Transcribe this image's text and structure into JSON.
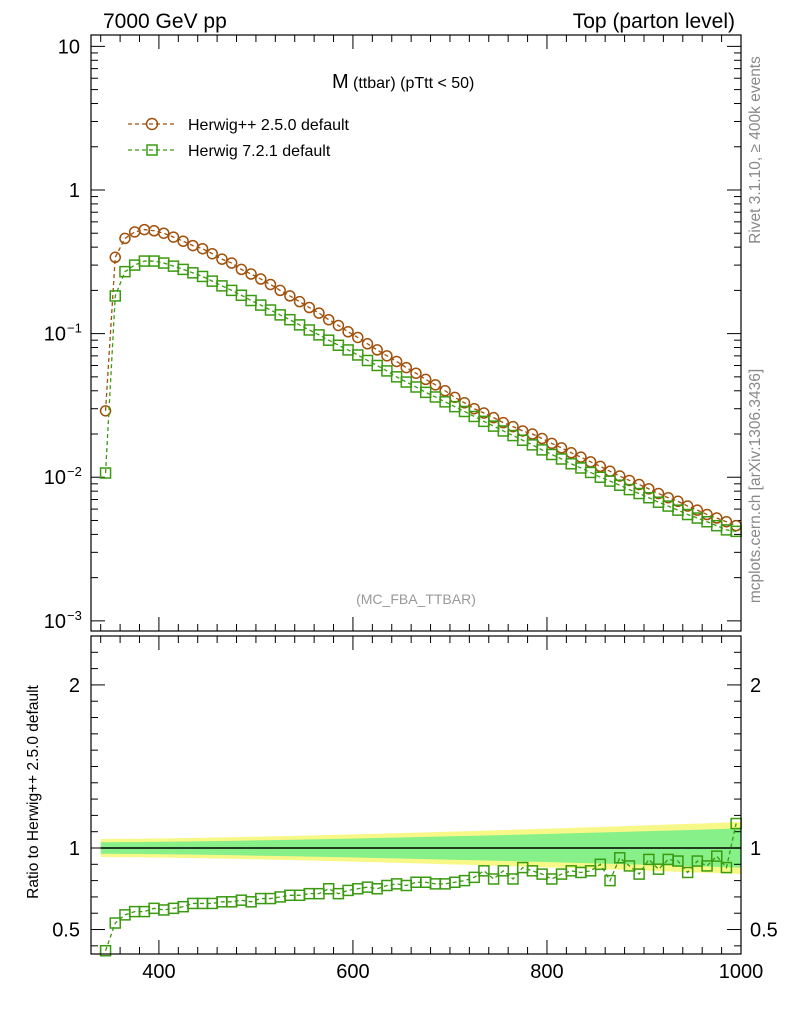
{
  "header": {
    "left": "7000 GeV pp",
    "right": "Top (parton level)"
  },
  "side_labels": {
    "rivet": "Rivet 3.1.10, ≥ 400k events",
    "mcplots": "mcplots.cern.ch [arXiv:1306.3436]"
  },
  "colors": {
    "herwigpp": "#a0500a",
    "herwig7": "#3a9a10",
    "band_inner": "#88f088",
    "band_outer": "#f8f888"
  },
  "chart_data": [
    {
      "type": "line",
      "panel": "main",
      "title": "M",
      "title_suffix": "(ttbar)  (pTtt < 50)",
      "watermark": "(MC_FBA_TTBAR)",
      "xlabel": "",
      "ylabel": "",
      "yscale": "log",
      "xlim": [
        330,
        1000
      ],
      "ylim": [
        0.00085,
        12
      ],
      "yticks": [
        {
          "value": 10,
          "label": "10"
        },
        {
          "value": 1,
          "label": "1"
        },
        {
          "value": 0.1,
          "label": "10",
          "exp": "−1"
        },
        {
          "value": 0.01,
          "label": "10",
          "exp": "−2"
        },
        {
          "value": 0.001,
          "label": "10",
          "exp": "−3"
        }
      ],
      "legend_position": "top-left",
      "x": [
        345,
        355,
        365,
        375,
        385,
        395,
        405,
        415,
        425,
        435,
        445,
        455,
        465,
        475,
        485,
        495,
        505,
        515,
        525,
        535,
        545,
        555,
        565,
        575,
        585,
        595,
        605,
        615,
        625,
        635,
        645,
        655,
        665,
        675,
        685,
        695,
        705,
        715,
        725,
        735,
        745,
        755,
        765,
        775,
        785,
        795,
        805,
        815,
        825,
        835,
        845,
        855,
        865,
        875,
        885,
        895,
        905,
        915,
        925,
        935,
        945,
        955,
        965,
        975,
        985,
        995
      ],
      "series": [
        {
          "name": "Herwig++ 2.5.0 default",
          "marker": "circle",
          "values": [
            0.029,
            0.34,
            0.46,
            0.51,
            0.53,
            0.52,
            0.5,
            0.47,
            0.44,
            0.41,
            0.39,
            0.36,
            0.33,
            0.31,
            0.28,
            0.26,
            0.24,
            0.22,
            0.2,
            0.183,
            0.167,
            0.152,
            0.139,
            0.125,
            0.114,
            0.103,
            0.094,
            0.085,
            0.077,
            0.07,
            0.064,
            0.058,
            0.053,
            0.048,
            0.044,
            0.04,
            0.036,
            0.033,
            0.03,
            0.028,
            0.026,
            0.024,
            0.0225,
            0.021,
            0.02,
            0.0186,
            0.0172,
            0.016,
            0.0148,
            0.0138,
            0.0128,
            0.0119,
            0.011,
            0.0102,
            0.0095,
            0.0089,
            0.0083,
            0.0077,
            0.0072,
            0.0068,
            0.0063,
            0.0059,
            0.0055,
            0.0052,
            0.0049,
            0.0046
          ]
        },
        {
          "name": "Herwig 7.2.1 default",
          "marker": "square",
          "values": [
            0.0107,
            0.183,
            0.27,
            0.3,
            0.32,
            0.32,
            0.31,
            0.295,
            0.28,
            0.265,
            0.25,
            0.232,
            0.215,
            0.2,
            0.185,
            0.17,
            0.158,
            0.146,
            0.135,
            0.125,
            0.115,
            0.106,
            0.098,
            0.09,
            0.083,
            0.077,
            0.071,
            0.065,
            0.06,
            0.055,
            0.05,
            0.046,
            0.0425,
            0.039,
            0.0362,
            0.0335,
            0.031,
            0.0287,
            0.0265,
            0.0245,
            0.0227,
            0.021,
            0.0195,
            0.0181,
            0.0168,
            0.0155,
            0.0144,
            0.0134,
            0.0124,
            0.0116,
            0.0108,
            0.01,
            0.0094,
            0.0088,
            0.0082,
            0.0077,
            0.0072,
            0.0067,
            0.0063,
            0.0059,
            0.0055,
            0.0052,
            0.0049,
            0.0046,
            0.0043,
            0.0042
          ]
        }
      ]
    },
    {
      "type": "line",
      "panel": "ratio",
      "title": "",
      "xlabel": "",
      "ylabel": "Ratio to Herwig++ 2.5.0 default",
      "xlim": [
        330,
        1000
      ],
      "ylim": [
        0.35,
        2.3
      ],
      "yticks": [
        {
          "value": 2,
          "label": "2"
        },
        {
          "value": 1,
          "label": "1"
        },
        {
          "value": 0.5,
          "label": "0.5"
        }
      ],
      "xticks": [
        {
          "value": 400,
          "label": "400"
        },
        {
          "value": 600,
          "label": "600"
        },
        {
          "value": 800,
          "label": "800"
        },
        {
          "value": 1000,
          "label": "1000"
        }
      ],
      "reference_line": 1,
      "band_inner_halfwidth": [
        0.035,
        0.12
      ],
      "band_outer_halfwidth": [
        0.055,
        0.16
      ],
      "x": [
        345,
        355,
        365,
        375,
        385,
        395,
        405,
        415,
        425,
        435,
        445,
        455,
        465,
        475,
        485,
        495,
        505,
        515,
        525,
        535,
        545,
        555,
        565,
        575,
        585,
        595,
        605,
        615,
        625,
        635,
        645,
        655,
        665,
        675,
        685,
        695,
        705,
        715,
        725,
        735,
        745,
        755,
        765,
        775,
        785,
        795,
        805,
        815,
        825,
        835,
        845,
        855,
        865,
        875,
        885,
        895,
        905,
        915,
        925,
        935,
        945,
        955,
        965,
        975,
        985,
        995
      ],
      "series": [
        {
          "name": "Herwig 7.2.1 default",
          "marker": "square",
          "values": [
            0.37,
            0.54,
            0.59,
            0.61,
            0.61,
            0.63,
            0.62,
            0.63,
            0.64,
            0.66,
            0.66,
            0.66,
            0.67,
            0.67,
            0.68,
            0.67,
            0.69,
            0.69,
            0.7,
            0.71,
            0.71,
            0.72,
            0.72,
            0.75,
            0.72,
            0.74,
            0.75,
            0.76,
            0.75,
            0.77,
            0.78,
            0.77,
            0.79,
            0.79,
            0.78,
            0.78,
            0.79,
            0.8,
            0.82,
            0.86,
            0.81,
            0.86,
            0.81,
            0.88,
            0.86,
            0.84,
            0.81,
            0.84,
            0.86,
            0.85,
            0.86,
            0.9,
            0.8,
            0.94,
            0.89,
            0.84,
            0.93,
            0.87,
            0.93,
            0.92,
            0.85,
            0.92,
            0.89,
            0.95,
            0.88,
            1.15
          ]
        }
      ]
    }
  ]
}
